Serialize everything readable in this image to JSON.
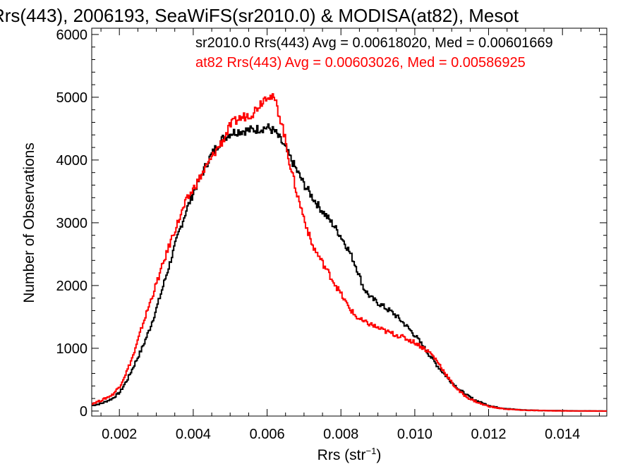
{
  "chart_data": {
    "type": "line",
    "title": "Rrs(443), 2006193, SeaWiFS(sr2010.0) & MODISA(at82), Mesot",
    "xlabel": "Rrs (str",
    "xlabel_sup": "−1",
    "xlabel_close": ")",
    "ylabel": "Number of Observations",
    "xlim": [
      0.00125,
      0.0152
    ],
    "ylim": [
      -80,
      6100
    ],
    "x_ticks": [
      0.002,
      0.004,
      0.006,
      0.008,
      0.01,
      0.012,
      0.014
    ],
    "x_tick_labels": [
      "0.002",
      "0.004",
      "0.006",
      "0.008",
      "0.010",
      "0.012",
      "0.014"
    ],
    "y_ticks": [
      0,
      1000,
      2000,
      3000,
      4000,
      5000,
      6000
    ],
    "y_tick_labels": [
      "0",
      "1000",
      "2000",
      "3000",
      "4000",
      "5000",
      "6000"
    ],
    "legend_position": "top-right",
    "series": [
      {
        "name": "sr2010.0 Rrs(443) Avg = 0.00618020, Med = 0.00601669",
        "color": "#000000",
        "x": [
          0.00125,
          0.0015,
          0.0018,
          0.002,
          0.0022,
          0.0024,
          0.0026,
          0.0028,
          0.003,
          0.0032,
          0.0034,
          0.0036,
          0.0038,
          0.004,
          0.0042,
          0.0044,
          0.0046,
          0.0048,
          0.005,
          0.0052,
          0.0054,
          0.0056,
          0.0058,
          0.006,
          0.0062,
          0.0064,
          0.0066,
          0.0068,
          0.007,
          0.0072,
          0.0074,
          0.0076,
          0.0078,
          0.008,
          0.0082,
          0.0084,
          0.0086,
          0.0088,
          0.009,
          0.0092,
          0.0094,
          0.0096,
          0.0098,
          0.01,
          0.0102,
          0.0104,
          0.0106,
          0.0108,
          0.011,
          0.0112,
          0.0114,
          0.0116,
          0.0118,
          0.012,
          0.0122,
          0.0124,
          0.0126,
          0.0128,
          0.013,
          0.0135,
          0.014,
          0.0145,
          0.015,
          0.0152
        ],
        "y": [
          90,
          120,
          200,
          300,
          500,
          750,
          1000,
          1300,
          1650,
          2050,
          2450,
          2850,
          3200,
          3500,
          3750,
          4000,
          4200,
          4350,
          4430,
          4460,
          4470,
          4480,
          4500,
          4520,
          4450,
          4270,
          4050,
          3820,
          3600,
          3420,
          3250,
          3100,
          2950,
          2770,
          2560,
          2300,
          1960,
          1800,
          1720,
          1640,
          1560,
          1450,
          1330,
          1200,
          1040,
          880,
          720,
          580,
          450,
          340,
          250,
          180,
          130,
          90,
          60,
          45,
          30,
          20,
          15,
          8,
          4,
          2,
          1,
          0
        ]
      },
      {
        "name": "at82 Rrs(443) Avg = 0.00603026, Med = 0.00586925",
        "color": "#ff0000",
        "x": [
          0.00125,
          0.0015,
          0.0018,
          0.002,
          0.0022,
          0.0024,
          0.0026,
          0.0028,
          0.003,
          0.0032,
          0.0034,
          0.0036,
          0.0038,
          0.004,
          0.0042,
          0.0044,
          0.0046,
          0.0048,
          0.005,
          0.0052,
          0.0054,
          0.0056,
          0.0058,
          0.006,
          0.0062,
          0.0064,
          0.0066,
          0.0068,
          0.007,
          0.0072,
          0.0074,
          0.0076,
          0.0078,
          0.008,
          0.0082,
          0.0084,
          0.0086,
          0.0088,
          0.009,
          0.0092,
          0.0094,
          0.0096,
          0.0098,
          0.01,
          0.0102,
          0.0104,
          0.0106,
          0.0108,
          0.011,
          0.0112,
          0.0114,
          0.0116,
          0.0118,
          0.012,
          0.0122,
          0.0124,
          0.0126,
          0.0128,
          0.013,
          0.0135,
          0.014,
          0.0145,
          0.015,
          0.0152
        ],
        "y": [
          120,
          170,
          260,
          400,
          650,
          950,
          1350,
          1700,
          2050,
          2400,
          2750,
          3050,
          3350,
          3550,
          3750,
          3950,
          4150,
          4320,
          4560,
          4650,
          4700,
          4750,
          4900,
          5050,
          4950,
          4550,
          3950,
          3450,
          3050,
          2650,
          2450,
          2250,
          2050,
          1850,
          1650,
          1500,
          1420,
          1380,
          1320,
          1270,
          1230,
          1190,
          1140,
          1090,
          1010,
          930,
          790,
          610,
          440,
          310,
          220,
          160,
          110,
          75,
          50,
          35,
          25,
          18,
          12,
          6,
          3,
          1,
          0,
          0
        ]
      }
    ]
  }
}
